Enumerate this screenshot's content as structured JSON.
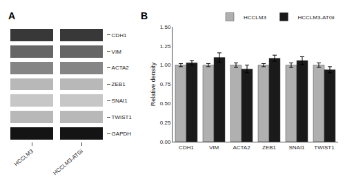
{
  "chart_data": [
    {
      "type": "heatmap",
      "title": "A",
      "x": [
        "HCCLM3",
        "HCCLM3-ATGi"
      ],
      "y": [
        "CDH1",
        "VIM",
        "ACTA2",
        "ZEB1",
        "SNAI1",
        "TWIST1",
        "GAPDH"
      ],
      "values": [
        [
          0.78,
          0.78
        ],
        [
          0.6,
          0.6
        ],
        [
          0.48,
          0.48
        ],
        [
          0.28,
          0.28
        ],
        [
          0.22,
          0.22
        ],
        [
          0.28,
          0.28
        ],
        [
          0.92,
          0.92
        ]
      ],
      "zlim": [
        0,
        1
      ]
    },
    {
      "type": "bar",
      "title": "B",
      "categories": [
        "CDH1",
        "VIM",
        "ACTA2",
        "ZEB1",
        "SNAI1",
        "TWIST1"
      ],
      "series": [
        {
          "name": "HCCLM3",
          "color": "#b0b0b0",
          "values": [
            1.0,
            1.0,
            1.0,
            1.0,
            1.0,
            1.0
          ],
          "errors": [
            0.02,
            0.02,
            0.03,
            0.02,
            0.03,
            0.03
          ]
        },
        {
          "name": "HCCLM3-ATGi",
          "color": "#1a1a1a",
          "values": [
            1.03,
            1.1,
            0.95,
            1.09,
            1.06,
            0.94
          ],
          "errors": [
            0.03,
            0.06,
            0.05,
            0.04,
            0.05,
            0.04
          ]
        }
      ],
      "ylabel": "Relative density",
      "ylim": [
        0.0,
        1.5
      ],
      "yticks": [
        {
          "value": 0.0,
          "label": "0.00"
        },
        0.25,
        {
          "value": 0.5,
          "label": "0.50"
        },
        0.75,
        {
          "value": 1.0,
          "label": "1.00"
        },
        1.25,
        {
          "value": 1.5,
          "label": "1.50"
        }
      ],
      "grid": false,
      "legend": "upper right"
    }
  ]
}
